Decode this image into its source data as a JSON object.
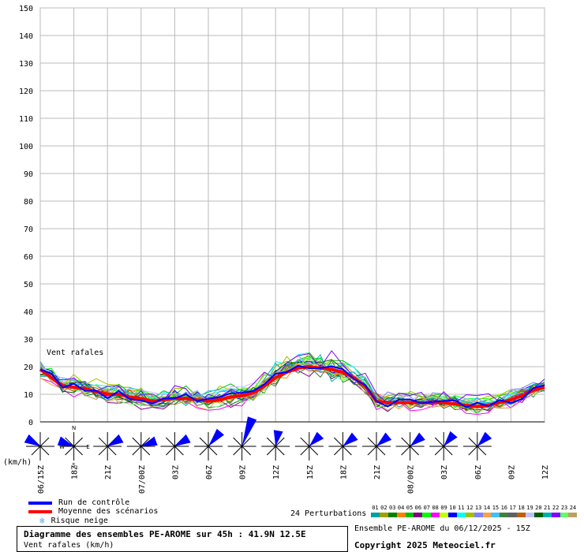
{
  "chart_data": {
    "type": "line",
    "series_label": "Vent rafales",
    "unit_label": "(km/h)",
    "ylim": [
      0,
      150
    ],
    "yticks": [
      0,
      10,
      20,
      30,
      40,
      50,
      60,
      70,
      80,
      90,
      100,
      110,
      120,
      130,
      140,
      150
    ],
    "xlabels": [
      "06/15Z",
      "18Z",
      "21Z",
      "07/00Z",
      "03Z",
      "06Z",
      "09Z",
      "12Z",
      "15Z",
      "18Z",
      "21Z",
      "08/00Z",
      "03Z",
      "06Z",
      "09Z",
      "12Z"
    ],
    "xhours": [
      0,
      3,
      6,
      9,
      12,
      15,
      18,
      21,
      24,
      27,
      30,
      33,
      36,
      39,
      42,
      45
    ],
    "grid": true,
    "mean": {
      "name": "Moyenne des scénarios",
      "color": "#ff0000",
      "x": [
        0,
        1,
        2,
        3,
        4,
        5,
        6,
        7,
        8,
        9,
        10,
        11,
        12,
        13,
        14,
        15,
        16,
        17,
        18,
        19,
        20,
        21,
        22,
        23,
        24,
        25,
        26,
        27,
        28,
        29,
        30,
        31,
        32,
        33,
        34,
        35,
        36,
        37,
        38,
        39,
        40,
        41,
        42,
        43,
        44,
        45
      ],
      "y": [
        19,
        16,
        13,
        12.5,
        12,
        11,
        10,
        10,
        9,
        8.5,
        7.5,
        8,
        8.5,
        8.5,
        8,
        7.5,
        8,
        9,
        9.5,
        10.5,
        13,
        16,
        18,
        19.5,
        20,
        19.5,
        19,
        18,
        16,
        13,
        7.5,
        7,
        7,
        7,
        7,
        7,
        7,
        6.5,
        6,
        5.5,
        6,
        7,
        8,
        9.5,
        11.5,
        12.5
      ]
    },
    "control": {
      "name": "Run de contrôle",
      "color": "#0000ff"
    },
    "perturbation_count_label": "24 Perturbations",
    "perturbations": [
      "01",
      "02",
      "03",
      "04",
      "05",
      "06",
      "07",
      "08",
      "09",
      "10",
      "11",
      "12",
      "13",
      "14",
      "15",
      "16",
      "17",
      "18",
      "19",
      "20",
      "21",
      "22",
      "23",
      "24"
    ],
    "perturbation_colors": [
      "#00a0a0",
      "#a0a000",
      "#008000",
      "#ff8000",
      "#00c000",
      "#800080",
      "#00ff00",
      "#ff00ff",
      "#c0ff00",
      "#0000ff",
      "#00ffff",
      "#a0c000",
      "#8080ff",
      "#ffa040",
      "#40c0ff",
      "#408040",
      "#606060",
      "#c06000",
      "#c0c0ff",
      "#006000",
      "#00b0b0",
      "#8000ff",
      "#60ff60",
      "#c0a060"
    ],
    "snow_label": "Risque neige",
    "wind_dirs": [
      300,
      290,
      60,
      70,
      60,
      40,
      20,
      10,
      45,
      50,
      50,
      50,
      40,
      45
    ],
    "wind_rose_labels": [
      "N",
      "W",
      "E",
      "S"
    ]
  },
  "info": {
    "title": "Diagramme des ensembles PE-AROME sur 45h : 41.9N 12.5E",
    "subtitle": "Vent rafales (km/h)",
    "run": "Ensemble PE-AROME du 06/12/2025 - 15Z",
    "copyright": "Copyright 2025 Meteociel.fr"
  }
}
